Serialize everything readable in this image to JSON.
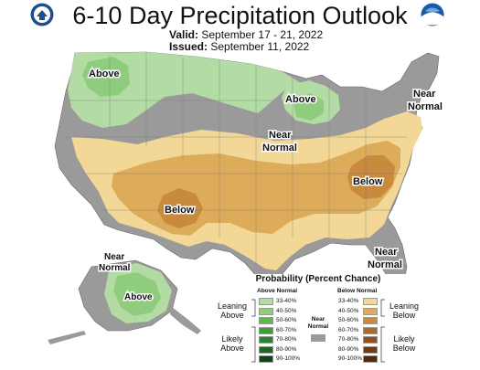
{
  "header": {
    "title": "6-10 Day Precipitation Outlook",
    "valid_label": "Valid:",
    "valid_dates": "September 17 - 21, 2022",
    "issued_label": "Issued:",
    "issued_date": "September 11, 2022"
  },
  "logos": {
    "left": "doc-seal-icon",
    "right": "noaa-logo-icon"
  },
  "map_labels": {
    "above_northwest": "Above",
    "above_great_lakes": "Above",
    "near_normal_northeast_1": "Near",
    "near_normal_northeast_2": "Normal",
    "near_normal_central_1": "Near",
    "near_normal_central_2": "Normal",
    "below_southwest": "Below",
    "below_appalachia": "Below",
    "near_normal_southeast_1": "Near",
    "near_normal_southeast_2": "Normal",
    "near_normal_alaska_1": "Near",
    "near_normal_alaska_2": "Normal",
    "above_alaska": "Above"
  },
  "legend": {
    "title": "Probability (Percent Chance)",
    "above_header": "Above Normal",
    "below_header": "Below Normal",
    "near_header_1": "Near",
    "near_header_2": "Normal",
    "leaning_above_1": "Leaning",
    "leaning_above_2": "Above",
    "likely_above_1": "Likely",
    "likely_above_2": "Above",
    "leaning_below_1": "Leaning",
    "leaning_below_2": "Below",
    "likely_below_1": "Likely",
    "likely_below_2": "Below",
    "ranges": [
      "33-40%",
      "40-50%",
      "50-60%",
      "60-70%",
      "70-80%",
      "80-90%",
      "90-100%"
    ],
    "above_colors": [
      "#b3dba4",
      "#8fcc7e",
      "#5fb84d",
      "#3e9f3a",
      "#2e8033",
      "#1e6626",
      "#0f4416"
    ],
    "below_colors": [
      "#f2d796",
      "#ddac5a",
      "#c88a3d",
      "#ad6a2d",
      "#8f4f1f",
      "#703a17",
      "#512810"
    ],
    "near_color": "#9a9a9a"
  },
  "colors": {
    "near_normal": "#9a9a9a",
    "above_33": "#b3dba4",
    "above_40": "#8fcc7e",
    "below_33": "#f2d796",
    "below_40": "#ddac5a",
    "below_50": "#c88a3d"
  }
}
